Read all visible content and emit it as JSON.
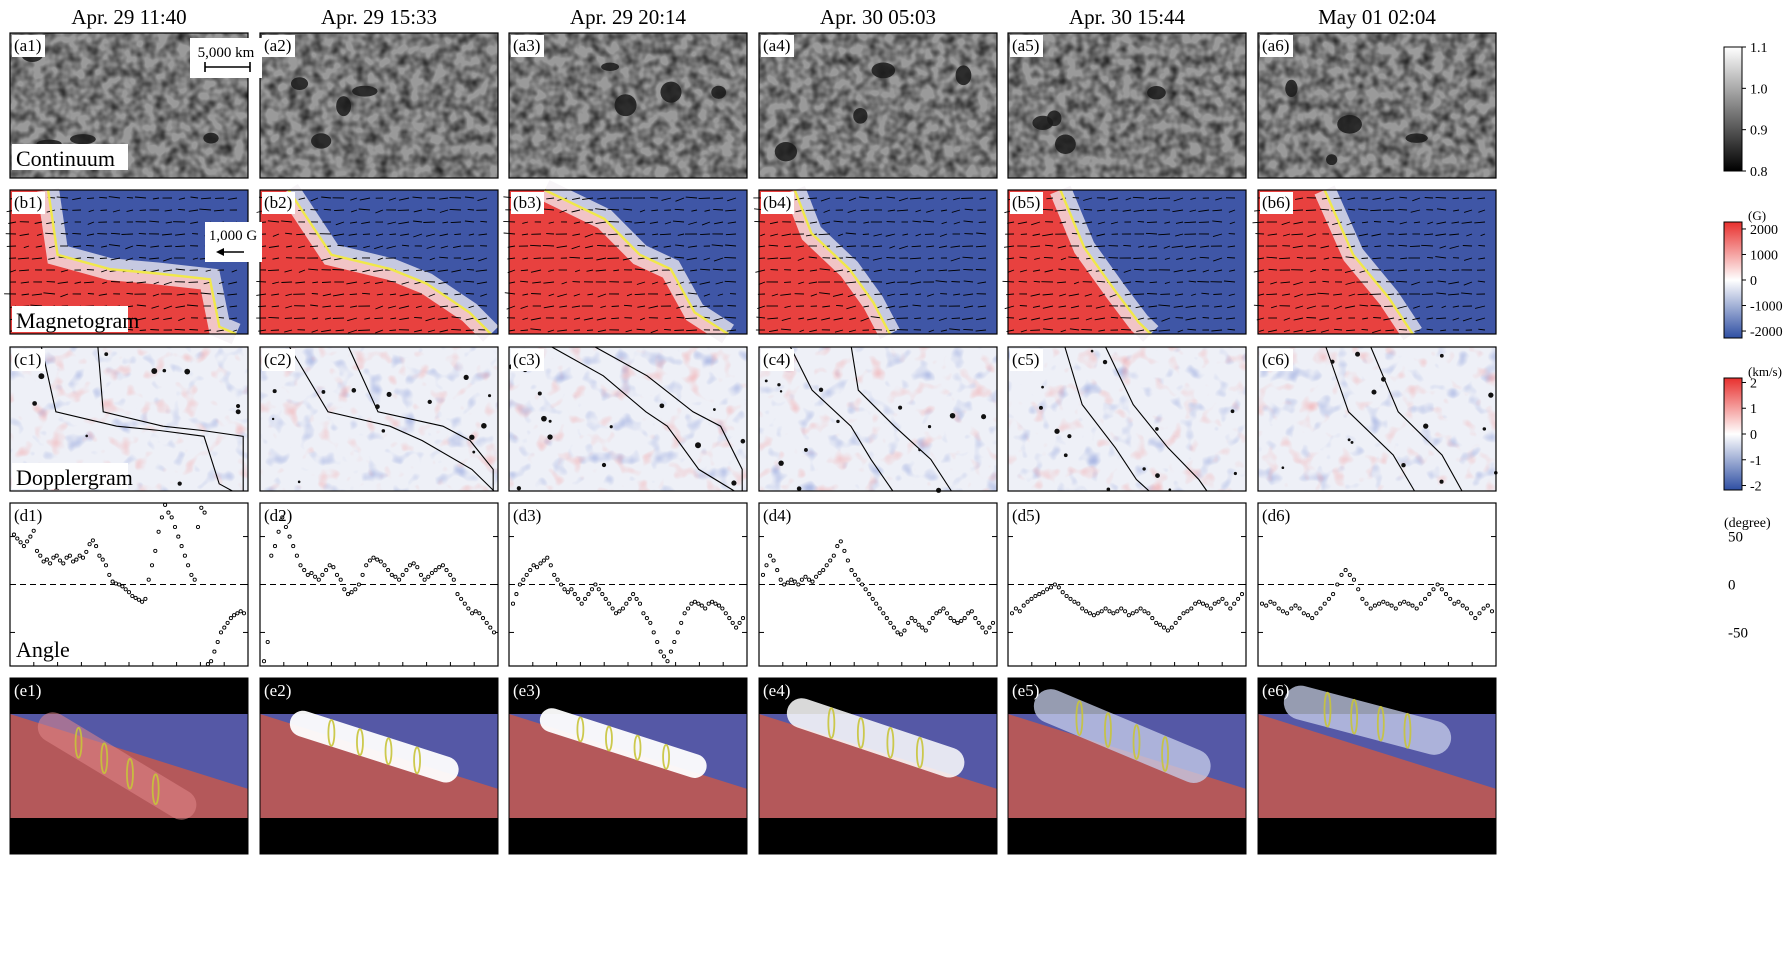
{
  "figure": {
    "times": [
      "Apr. 29  11:40",
      "Apr. 29  15:33",
      "Apr. 29  20:14",
      "Apr. 30  05:03",
      "Apr. 30  15:44",
      "May 01  02:04"
    ],
    "rows": [
      {
        "id": "a",
        "name": "Continuum"
      },
      {
        "id": "b",
        "name": "Magnetogram"
      },
      {
        "id": "c",
        "name": "Dopplergram"
      },
      {
        "id": "d",
        "name": "Angle"
      },
      {
        "id": "e",
        "name": ""
      }
    ],
    "panel_labels": {
      "a": [
        "(a1)",
        "(a2)",
        "(a3)",
        "(a4)",
        "(a5)",
        "(a6)"
      ],
      "b": [
        "(b1)",
        "(b2)",
        "(b3)",
        "(b4)",
        "(b5)",
        "(b6)"
      ],
      "c": [
        "(c1)",
        "(c2)",
        "(c3)",
        "(c4)",
        "(c5)",
        "(c6)"
      ],
      "d": [
        "(d1)",
        "(d2)",
        "(d3)",
        "(d4)",
        "(d5)",
        "(d6)"
      ],
      "e": [
        "(e1)",
        "(e2)",
        "(e3)",
        "(e4)",
        "(e5)",
        "(e6)"
      ]
    },
    "scale_bar": "5,000 km",
    "arrow_key": "1,000 G",
    "colorbars": {
      "continuum": {
        "unit": "",
        "ticks": [
          "1.1",
          "1.0",
          "0.9",
          "0.8"
        ]
      },
      "magnetogram": {
        "unit": "(G)",
        "ticks": [
          "2000",
          "1000",
          "0",
          "-1000",
          "-2000"
        ]
      },
      "doppler": {
        "unit": "(km/s)",
        "ticks": [
          "2",
          "1",
          "0",
          "-1",
          "-2"
        ]
      },
      "angle": {
        "unit": "(degree)",
        "ticks": [
          "50",
          "0",
          "-50"
        ]
      }
    },
    "colors": {
      "positive_polarity": "#e8413f",
      "negative_polarity": "#3f56a6",
      "pil_line": "#f0e84a",
      "render_red": "#b4585a",
      "render_blue": "#5558a6"
    },
    "angle_series": [
      [
        52,
        48,
        44,
        40,
        45,
        50,
        56,
        35,
        30,
        24,
        26,
        22,
        28,
        30,
        25,
        22,
        28,
        30,
        24,
        26,
        30,
        28,
        34,
        42,
        46,
        40,
        30,
        26,
        20,
        10,
        3,
        1,
        0,
        -2,
        -5,
        -8,
        -12,
        -14,
        -16,
        -18,
        -15,
        5,
        20,
        35,
        55,
        70,
        85,
        75,
        70,
        60,
        50,
        40,
        30,
        20,
        10,
        5,
        60,
        80,
        75,
        -90,
        -80,
        -70,
        -60,
        -50,
        -45,
        -40,
        -35,
        -32,
        -30,
        -28,
        -30
      ]
    ],
    "angle_ylim": [
      -85,
      85
    ]
  },
  "chart_data": [
    {
      "type": "scatter",
      "series": [
        {
          "values": [
            52,
            48,
            44,
            40,
            45,
            50,
            56,
            35,
            30,
            24,
            26,
            22,
            28,
            30,
            25,
            22,
            28,
            30,
            24,
            26,
            30,
            28,
            34,
            42,
            46,
            40,
            30,
            26,
            20,
            10,
            3,
            1,
            0,
            -2,
            -5,
            -8,
            -12,
            -14,
            -16,
            -18,
            -15,
            5,
            20,
            35,
            55,
            70,
            85,
            75,
            70,
            60,
            50,
            40,
            30,
            20,
            10,
            5,
            60,
            80,
            75,
            -90,
            -80,
            -70,
            -60,
            -50,
            -45,
            -40,
            -35,
            -32,
            -30,
            -28,
            -30
          ]
        }
      ],
      "ylabel": "Angle",
      "ylim": [
        -85,
        85
      ]
    },
    {
      "type": "scatter",
      "series": [
        {
          "values": [
            -80,
            -60,
            30,
            40,
            55,
            70,
            60,
            50,
            40,
            30,
            20,
            15,
            10,
            12,
            8,
            5,
            10,
            15,
            20,
            18,
            10,
            5,
            -5,
            -10,
            -8,
            -5,
            0,
            10,
            20,
            25,
            28,
            26,
            24,
            20,
            15,
            10,
            8,
            5,
            10,
            15,
            20,
            22,
            18,
            10,
            5,
            8,
            12,
            15,
            18,
            20,
            15,
            10,
            5,
            -10,
            -15,
            -20,
            -25,
            -30,
            -28,
            -30,
            -35,
            -40,
            -45,
            -50
          ]
        }
      ],
      "ylabel": "Angle",
      "ylim": [
        -85,
        85
      ]
    },
    {
      "type": "scatter",
      "series": [
        {
          "values": [
            -20,
            -10,
            0,
            5,
            10,
            15,
            20,
            18,
            22,
            25,
            28,
            20,
            10,
            5,
            0,
            -5,
            -8,
            -5,
            -10,
            -15,
            -20,
            -15,
            -10,
            -5,
            0,
            -5,
            -10,
            -15,
            -20,
            -25,
            -30,
            -28,
            -25,
            -20,
            -15,
            -10,
            -15,
            -20,
            -30,
            -35,
            -40,
            -50,
            -60,
            -70,
            -75,
            -80,
            -70,
            -60,
            -50,
            -40,
            -30,
            -25,
            -20,
            -18,
            -20,
            -22,
            -25,
            -20,
            -18,
            -20,
            -22,
            -25,
            -30,
            -35,
            -40,
            -45,
            -40,
            -35
          ]
        }
      ],
      "ylabel": "Angle",
      "ylim": [
        -85,
        85
      ]
    },
    {
      "type": "scatter",
      "series": [
        {
          "values": [
            10,
            20,
            30,
            25,
            15,
            5,
            0,
            2,
            5,
            3,
            0,
            5,
            8,
            5,
            3,
            8,
            12,
            15,
            20,
            25,
            30,
            40,
            45,
            35,
            25,
            15,
            10,
            5,
            0,
            -5,
            -10,
            -15,
            -20,
            -25,
            -30,
            -35,
            -40,
            -45,
            -50,
            -52,
            -48,
            -40,
            -35,
            -38,
            -42,
            -45,
            -48,
            -40,
            -35,
            -30,
            -28,
            -25,
            -30,
            -35,
            -38,
            -40,
            -38,
            -35,
            -30,
            -28,
            -35,
            -40,
            -45,
            -50,
            -45,
            -40
          ]
        }
      ],
      "ylabel": "Angle",
      "ylim": [
        -85,
        85
      ]
    },
    {
      "type": "scatter",
      "series": [
        {
          "values": [
            -30,
            -25,
            -28,
            -22,
            -18,
            -15,
            -12,
            -10,
            -8,
            -5,
            -3,
            0,
            -3,
            -8,
            -12,
            -15,
            -18,
            -20,
            -25,
            -28,
            -30,
            -32,
            -30,
            -28,
            -25,
            -28,
            -30,
            -28,
            -25,
            -28,
            -32,
            -30,
            -28,
            -25,
            -28,
            -30,
            -35,
            -40,
            -42,
            -45,
            -48,
            -45,
            -40,
            -35,
            -30,
            -28,
            -25,
            -20,
            -18,
            -20,
            -22,
            -25,
            -20,
            -18,
            -15,
            -20,
            -25,
            -20,
            -15,
            -10
          ]
        }
      ],
      "ylabel": "Angle",
      "ylim": [
        -85,
        85
      ]
    },
    {
      "type": "scatter",
      "series": [
        {
          "values": [
            -20,
            -22,
            -18,
            -20,
            -25,
            -28,
            -30,
            -25,
            -22,
            -25,
            -30,
            -32,
            -35,
            -30,
            -25,
            -20,
            -15,
            -10,
            0,
            10,
            15,
            10,
            5,
            -5,
            -15,
            -20,
            -25,
            -22,
            -20,
            -18,
            -20,
            -22,
            -25,
            -20,
            -18,
            -20,
            -22,
            -25,
            -20,
            -15,
            -10,
            -5,
            0,
            -5,
            -10,
            -15,
            -20,
            -18,
            -22,
            -25,
            -30,
            -35,
            -30,
            -25,
            -22,
            -28
          ]
        }
      ],
      "ylabel": "Angle",
      "ylim": [
        -85,
        85
      ]
    }
  ]
}
